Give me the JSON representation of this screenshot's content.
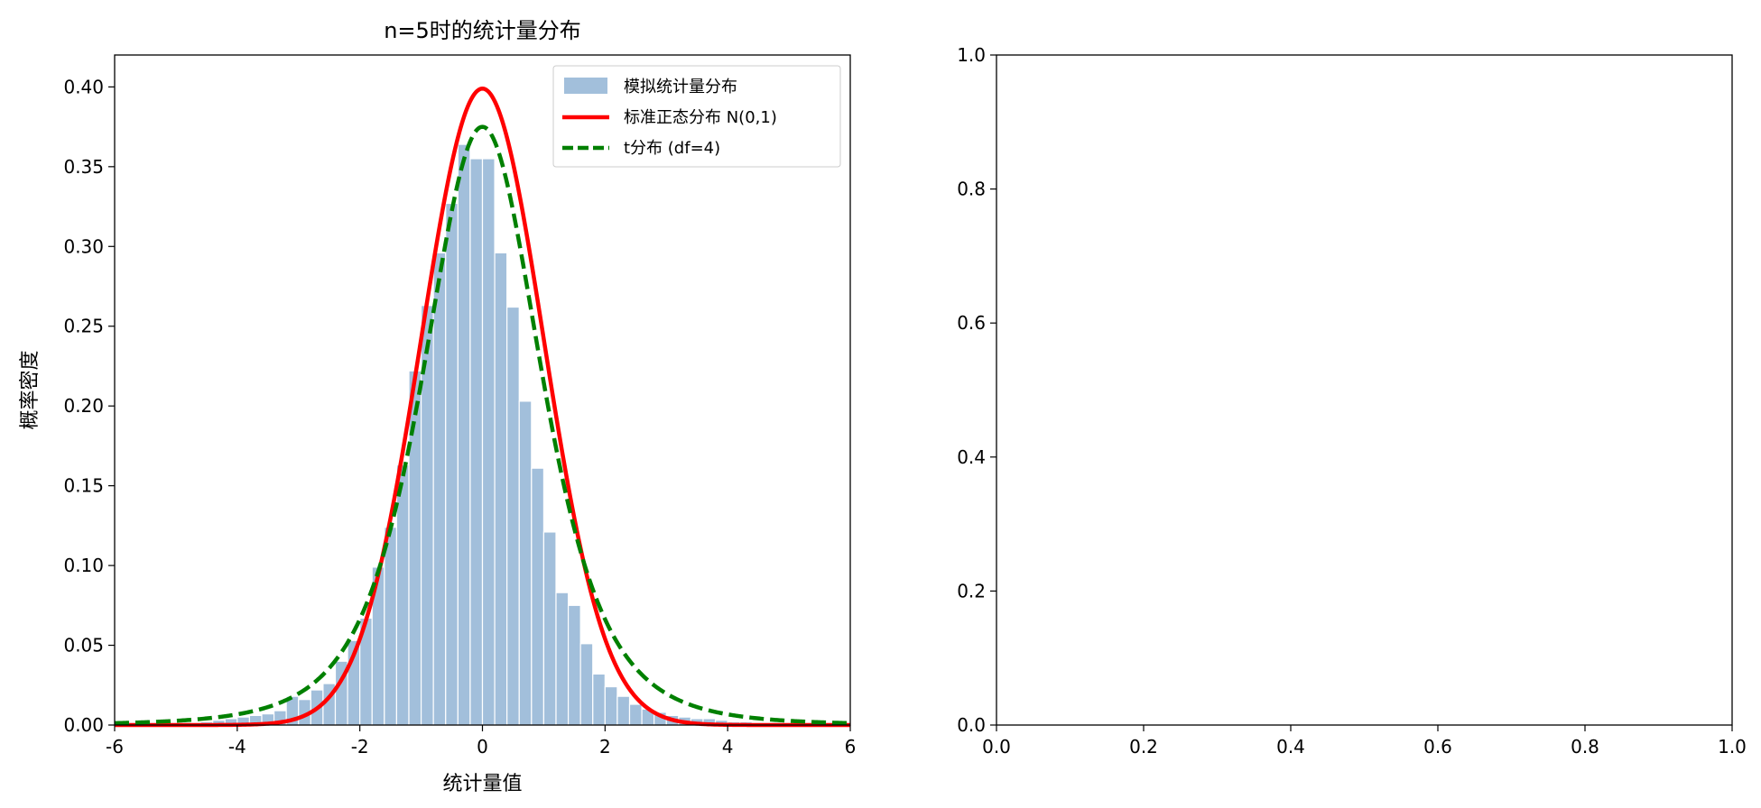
{
  "chart_data": [
    {
      "type": "bar",
      "title": "n=5时的统计量分布",
      "xlabel": "统计量值",
      "ylabel": "概率密度",
      "xlim": [
        -6,
        6
      ],
      "ylim": [
        0,
        0.42
      ],
      "xticks": [
        "-6",
        "-4",
        "-2",
        "0",
        "2",
        "4",
        "6"
      ],
      "yticks": [
        "0.00",
        "0.05",
        "0.10",
        "0.15",
        "0.20",
        "0.25",
        "0.30",
        "0.35",
        "0.40"
      ],
      "grid": false,
      "legend_position": "top-right",
      "legend": [
        {
          "label": "模拟统计量分布",
          "style": "patch"
        },
        {
          "label": "标准正态分布 N(0,1)",
          "style": "solid"
        },
        {
          "label": "t分布 (df=4)",
          "style": "dashed"
        }
      ],
      "histogram": {
        "name": "模拟统计量分布",
        "color": "#a2bfdb",
        "edge_color": "#ffffff",
        "bin_width": 0.2,
        "bin_starts": [
          -4.6,
          -4.4,
          -4.2,
          -4.0,
          -3.8,
          -3.6,
          -3.4,
          -3.2,
          -3.0,
          -2.8,
          -2.6,
          -2.4,
          -2.2,
          -2.0,
          -1.8,
          -1.6,
          -1.4,
          -1.2,
          -1.0,
          -0.8,
          -0.6,
          -0.4,
          -0.2,
          0.0,
          0.2,
          0.4,
          0.6,
          0.8,
          1.0,
          1.2,
          1.4,
          1.6,
          1.8,
          2.0,
          2.2,
          2.4,
          2.6,
          2.8,
          3.0,
          3.2,
          3.4,
          3.6,
          3.8,
          4.0,
          4.2,
          4.4
        ],
        "values": [
          0.002,
          0.003,
          0.004,
          0.005,
          0.006,
          0.007,
          0.009,
          0.018,
          0.016,
          0.022,
          0.026,
          0.04,
          0.053,
          0.067,
          0.099,
          0.124,
          0.163,
          0.222,
          0.263,
          0.296,
          0.327,
          0.364,
          0.355,
          0.355,
          0.296,
          0.262,
          0.203,
          0.161,
          0.121,
          0.083,
          0.075,
          0.051,
          0.032,
          0.024,
          0.018,
          0.013,
          0.01,
          0.008,
          0.006,
          0.005,
          0.004,
          0.004,
          0.003,
          0.002,
          0.002,
          0.001
        ]
      },
      "series": [
        {
          "name": "标准正态分布 N(0,1)",
          "type": "line",
          "color": "#ff0000",
          "style": "solid",
          "formula": "normal_pdf",
          "x_range": [
            -6,
            6
          ]
        },
        {
          "name": "t分布 (df=4)",
          "type": "line",
          "color": "#008000",
          "style": "dashed",
          "formula": "t_pdf_df4",
          "x_range": [
            -6,
            6
          ]
        }
      ]
    },
    {
      "type": "line",
      "title": "",
      "xlabel": "",
      "ylabel": "",
      "xlim": [
        0,
        1
      ],
      "ylim": [
        0,
        1
      ],
      "xticks": [
        "0.0",
        "0.2",
        "0.4",
        "0.6",
        "0.8",
        "1.0"
      ],
      "yticks": [
        "0.0",
        "0.2",
        "0.4",
        "0.6",
        "0.8",
        "1.0"
      ],
      "series": []
    }
  ]
}
